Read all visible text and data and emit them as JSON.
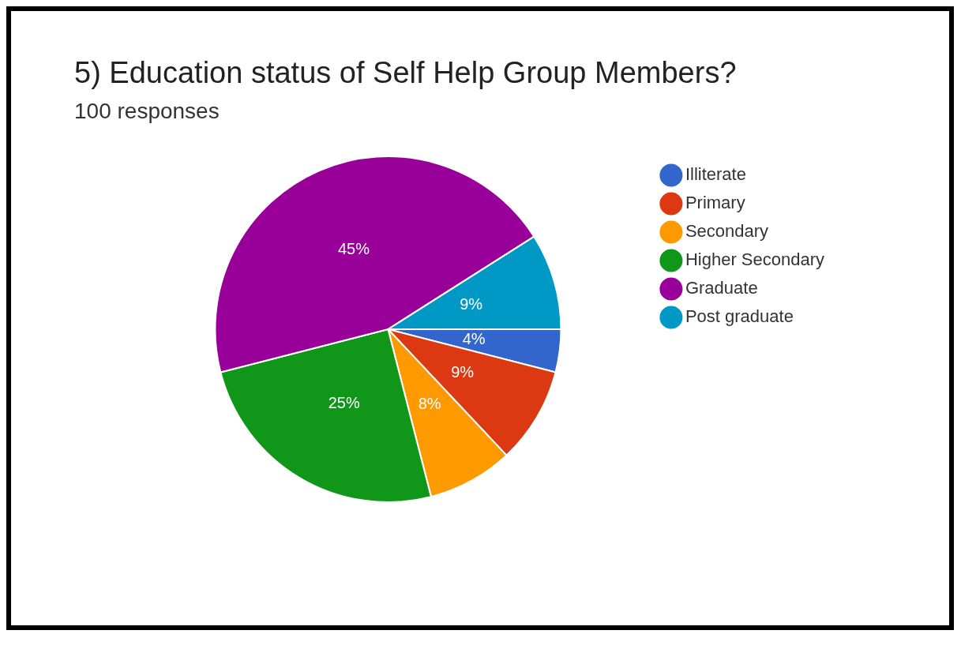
{
  "chart_data": {
    "type": "pie",
    "title": "5) Education status of Self Help Group Members?",
    "subtitle": "100 responses",
    "categories": [
      "Illiterate",
      "Primary",
      "Secondary",
      "Higher Secondary",
      "Graduate",
      "Post graduate"
    ],
    "values": [
      4,
      9,
      8,
      25,
      45,
      9
    ],
    "colors": [
      "#3366cc",
      "#dc3912",
      "#ff9900",
      "#109618",
      "#990099",
      "#0099c6"
    ],
    "value_labels": [
      "4%",
      "9%",
      "8%",
      "25%",
      "45%",
      "9%"
    ],
    "legend": "right"
  }
}
